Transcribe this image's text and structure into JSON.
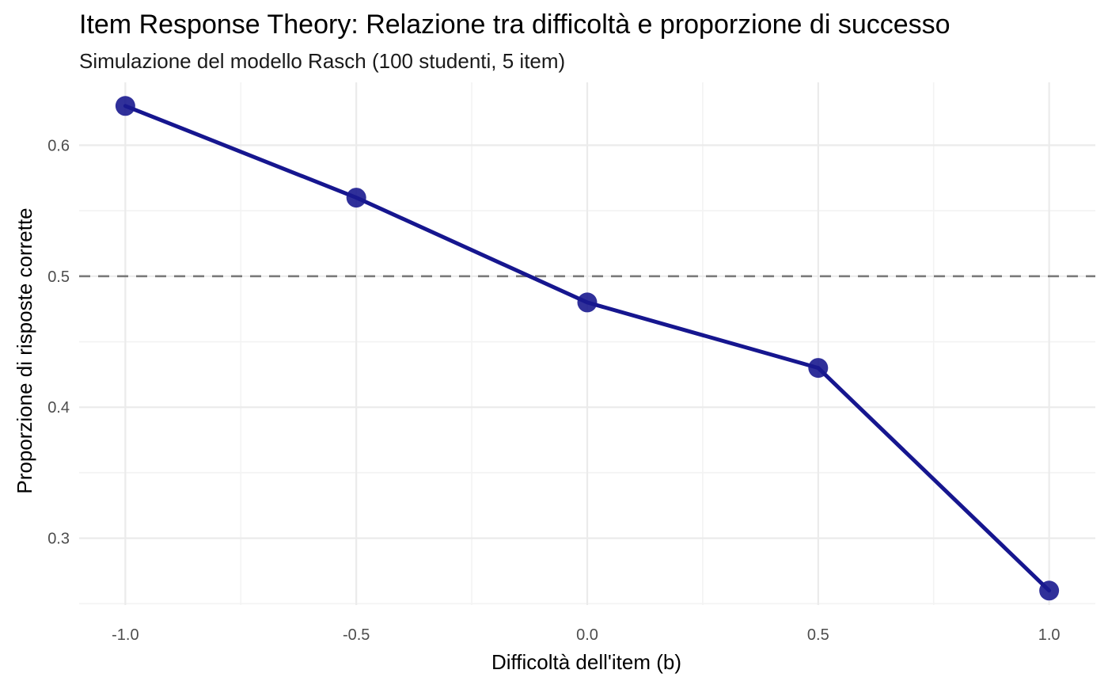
{
  "chart_data": {
    "type": "line",
    "title": "Item Response Theory: Relazione tra difficoltà e proporzione di successo",
    "subtitle": "Simulazione del modello Rasch (100 studenti, 5 item)",
    "xlabel": "Difficoltà dell'item (b)",
    "ylabel": "Proporzione di risposte corrette",
    "x": [
      -1.0,
      -0.5,
      0.0,
      0.5,
      1.0
    ],
    "y": [
      0.63,
      0.56,
      0.48,
      0.43,
      0.26
    ],
    "xlim": [
      -1.1,
      1.1
    ],
    "ylim": [
      0.249,
      0.648
    ],
    "x_ticks": [
      -1.0,
      -0.5,
      0.0,
      0.5,
      1.0
    ],
    "x_tick_labels": [
      "-1.0",
      "-0.5",
      "0.0",
      "0.5",
      "1.0"
    ],
    "y_ticks": [
      0.3,
      0.4,
      0.5,
      0.6
    ],
    "y_tick_labels": [
      "0.3",
      "0.4",
      "0.5",
      "0.6"
    ],
    "reference_line": {
      "y": 0.5,
      "style": "dashed",
      "color": "#7a7a7a"
    },
    "series_color": "#16168f",
    "grid": true,
    "legend": "none"
  }
}
